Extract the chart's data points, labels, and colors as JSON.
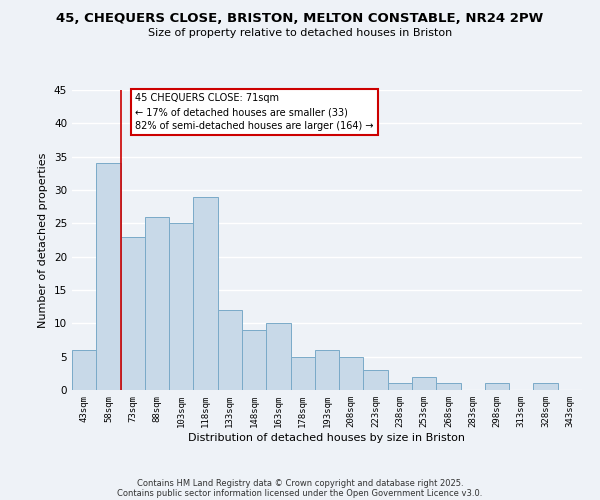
{
  "title": "45, CHEQUERS CLOSE, BRISTON, MELTON CONSTABLE, NR24 2PW",
  "subtitle": "Size of property relative to detached houses in Briston",
  "xlabel": "Distribution of detached houses by size in Briston",
  "ylabel": "Number of detached properties",
  "bin_labels": [
    "43sqm",
    "58sqm",
    "73sqm",
    "88sqm",
    "103sqm",
    "118sqm",
    "133sqm",
    "148sqm",
    "163sqm",
    "178sqm",
    "193sqm",
    "208sqm",
    "223sqm",
    "238sqm",
    "253sqm",
    "268sqm",
    "283sqm",
    "298sqm",
    "313sqm",
    "328sqm",
    "343sqm"
  ],
  "bar_heights": [
    6,
    34,
    23,
    26,
    25,
    29,
    12,
    9,
    10,
    5,
    6,
    5,
    3,
    1,
    2,
    1,
    0,
    1,
    0,
    1,
    0
  ],
  "bar_color": "#c8d9e8",
  "bar_edge_color": "#7aaac8",
  "vline_x_idx": 2,
  "vline_color": "#cc0000",
  "ylim": [
    0,
    45
  ],
  "yticks": [
    0,
    5,
    10,
    15,
    20,
    25,
    30,
    35,
    40,
    45
  ],
  "annotation_text": "45 CHEQUERS CLOSE: 71sqm\n← 17% of detached houses are smaller (33)\n82% of semi-detached houses are larger (164) →",
  "annotation_box_facecolor": "#ffffff",
  "annotation_box_edgecolor": "#cc0000",
  "background_color": "#eef2f7",
  "grid_color": "#ffffff",
  "footer_line1": "Contains HM Land Registry data © Crown copyright and database right 2025.",
  "footer_line2": "Contains public sector information licensed under the Open Government Licence v3.0."
}
